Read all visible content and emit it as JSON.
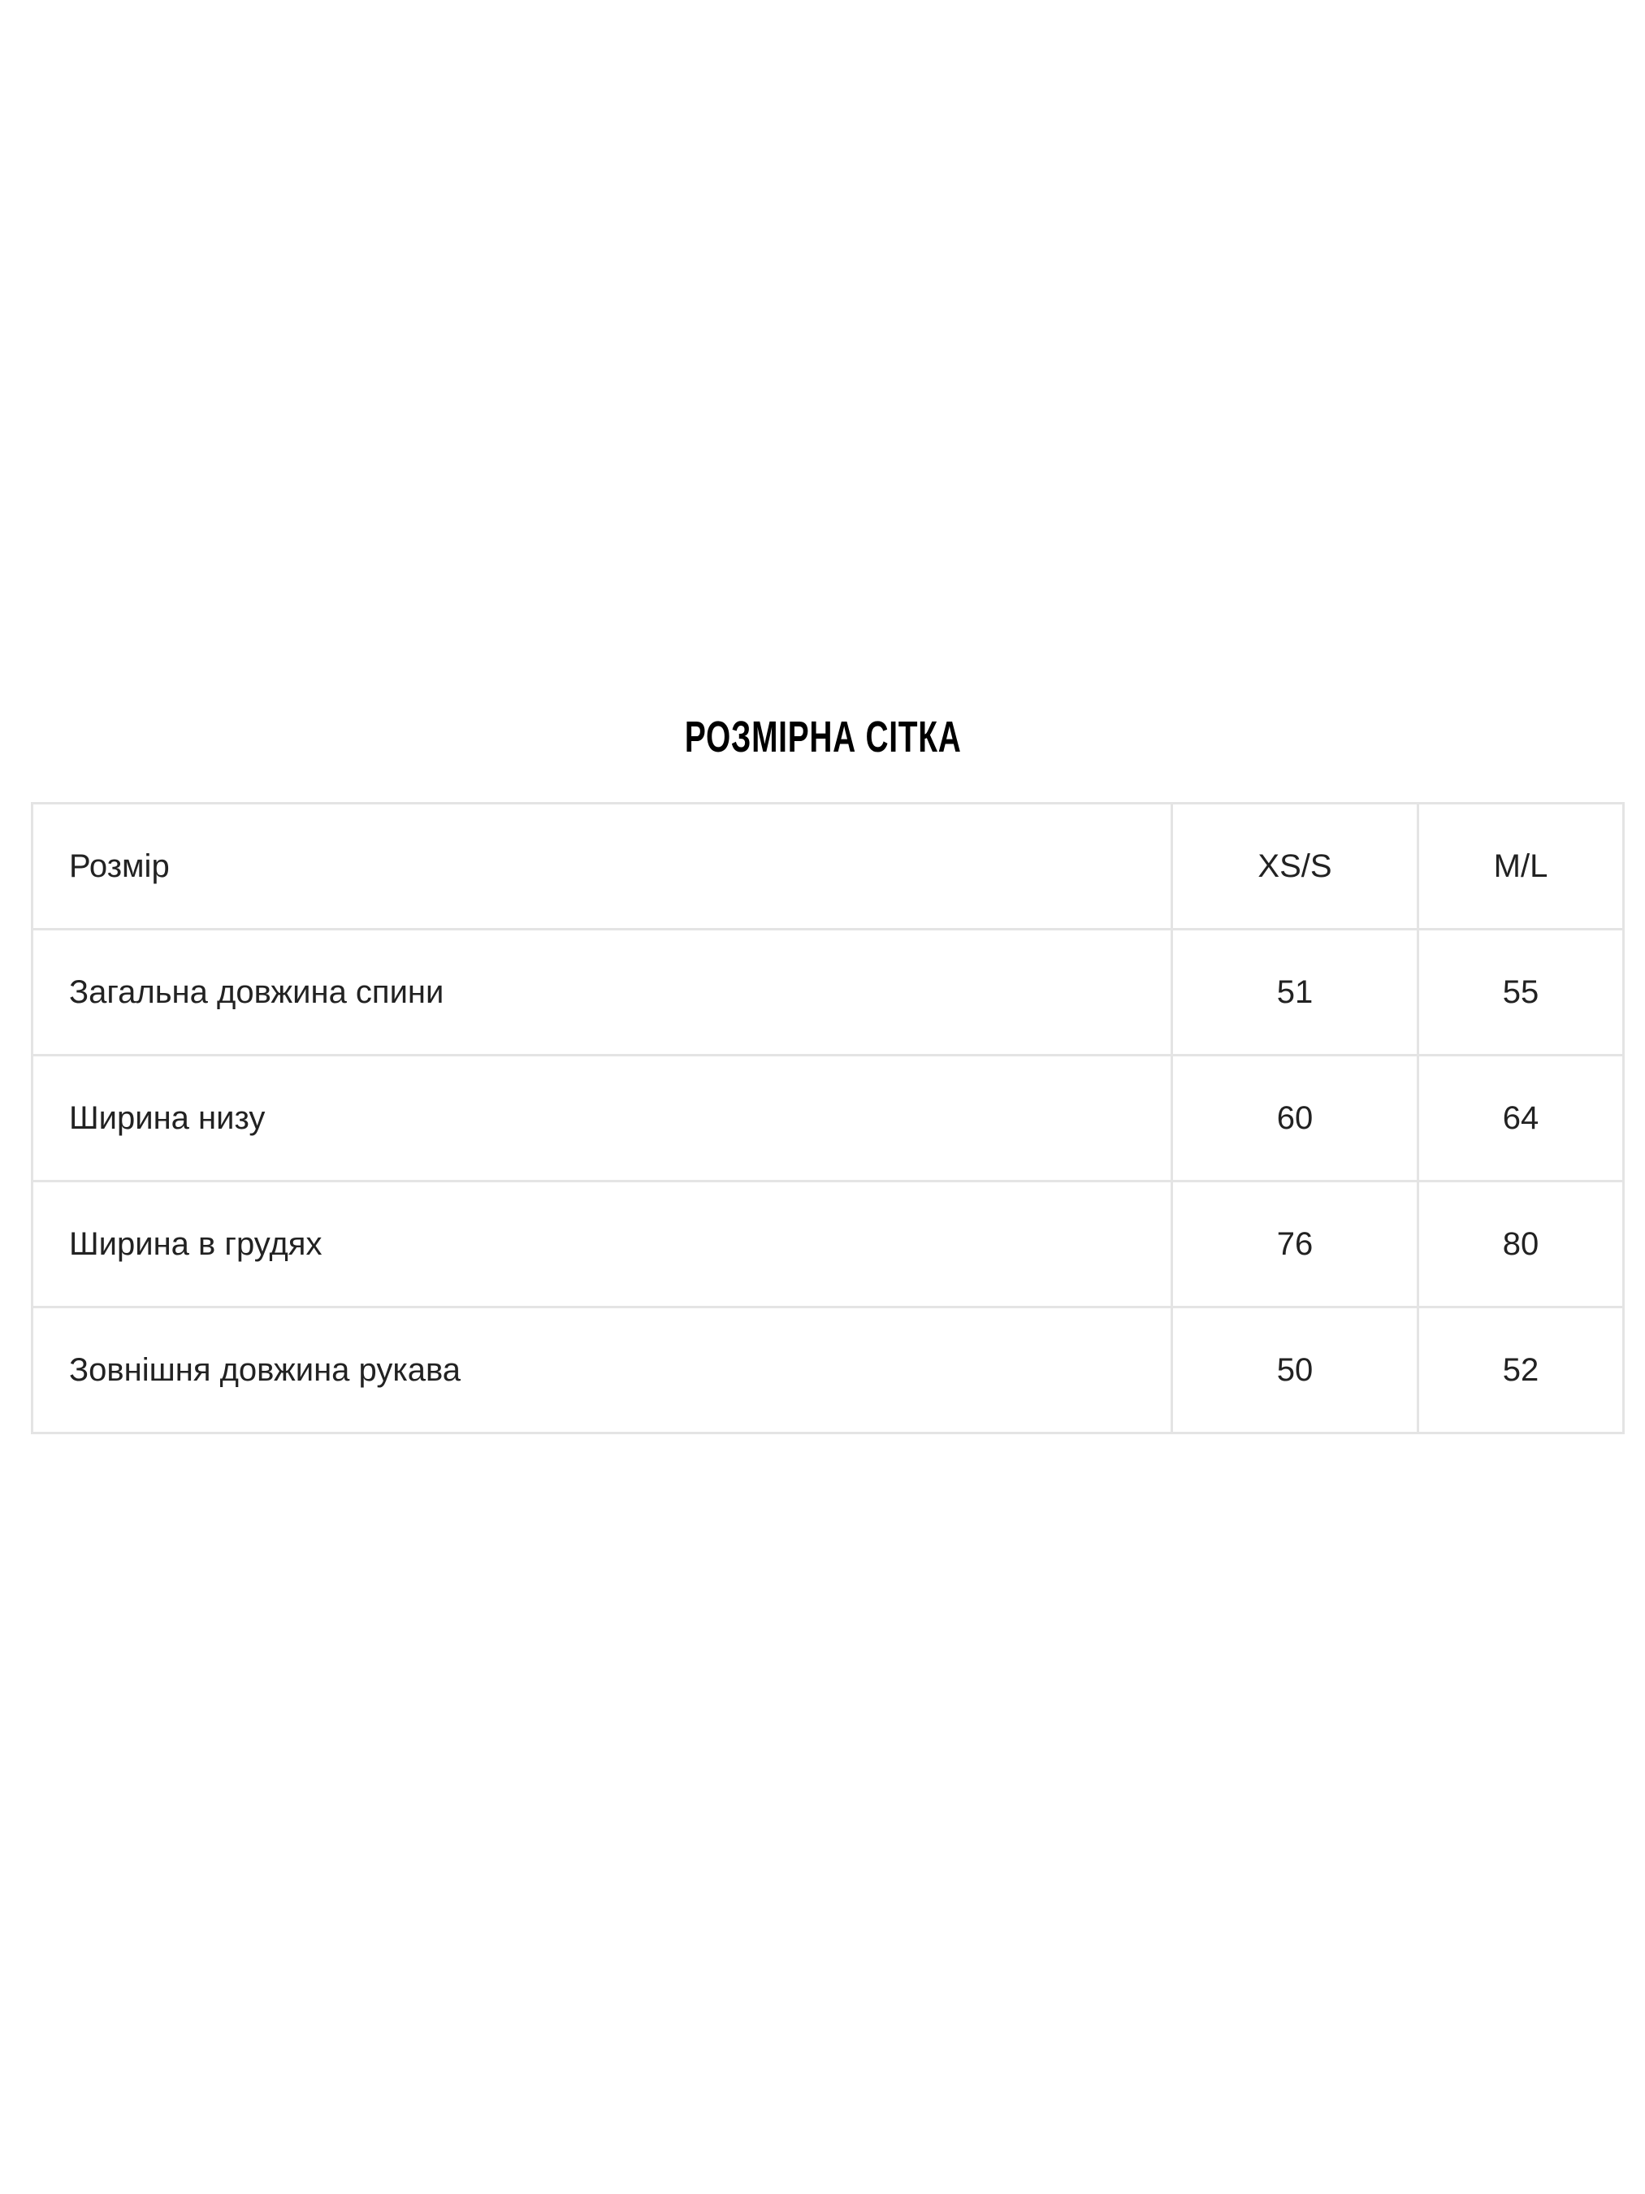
{
  "title": "РОЗМІРНА СІТКА",
  "table": {
    "header": [
      "Розмір",
      "XS/S",
      "M/L"
    ],
    "rows": [
      [
        "Загальна довжина спини",
        "51",
        "55"
      ],
      [
        "Ширина низу",
        "60",
        "64"
      ],
      [
        "Ширина в грудях",
        "76",
        "80"
      ],
      [
        "Зовнішня довжина рукава",
        "50",
        "52"
      ]
    ]
  }
}
